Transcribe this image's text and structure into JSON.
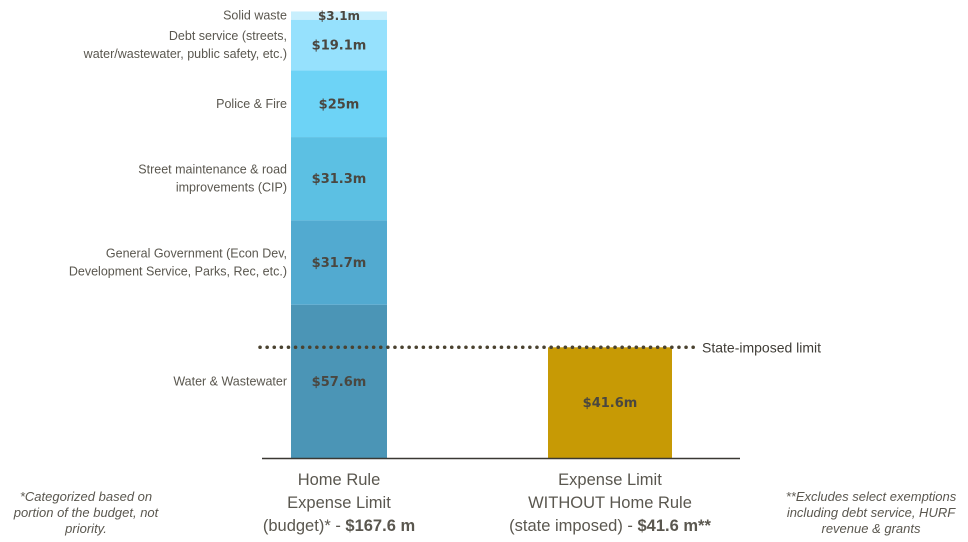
{
  "chart_data": {
    "type": "bar",
    "stacked": true,
    "categories": [
      [
        "Home Rule",
        "Expense Limit",
        "(budget)* - ",
        "$167.6 m"
      ],
      [
        "Expense Limit",
        "WITHOUT Home Rule",
        "(state imposed) - ",
        "$41.6 m**"
      ]
    ],
    "home_rule_segments": [
      {
        "label": "Water & Wastewater",
        "value": 57.6,
        "value_label": "$57.6m",
        "color": "#4b95b6"
      },
      {
        "label": "General Government (Econ Dev,\nDevelopment Service, Parks, Rec, etc.)",
        "value": 31.7,
        "value_label": "$31.7m",
        "color": "#52aad0"
      },
      {
        "label": "Street maintenance & road\nimprovements (CIP)",
        "value": 31.3,
        "value_label": "$31.3m",
        "color": "#5cc0e3"
      },
      {
        "label": "Police & Fire",
        "value": 25.0,
        "value_label": "$25m",
        "color": "#6dd3f6"
      },
      {
        "label": "Debt service (streets,\nwater/wastewater, public safety, etc.)",
        "value": 19.1,
        "value_label": "$19.1m",
        "color": "#96e1fd"
      },
      {
        "label": "Solid waste",
        "value": 3.1,
        "value_label": "$3.1m",
        "color": "#c8effd"
      }
    ],
    "state_limit_bar": {
      "value": 41.6,
      "value_label": "$41.6m",
      "color": "#c79a05"
    },
    "limit_line": {
      "value": 41.6,
      "label": "State-imposed limit"
    },
    "ylim": [
      0,
      167.6
    ]
  },
  "notes": {
    "left": "*Categorized based on portion of the budget, not priority.",
    "right": "**Excludes select exemptions including debt service, HURF revenue & grants"
  }
}
